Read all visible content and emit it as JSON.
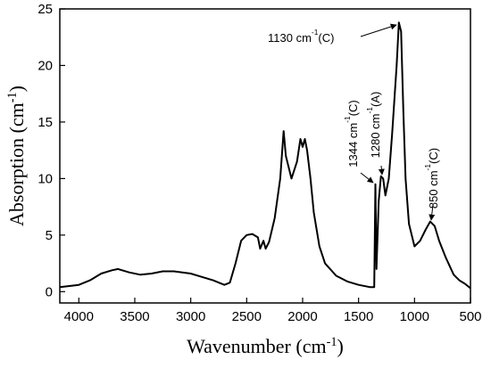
{
  "chart_data": {
    "type": "line",
    "xlabel": {
      "text": "Wavenumber (cm",
      "sup": "-1",
      "suffix": ")"
    },
    "ylabel": {
      "text": "Absorption (cm",
      "sup": "-1",
      "suffix": ")"
    },
    "xlim": [
      4170,
      500
    ],
    "ylim": [
      -1,
      25
    ],
    "xticks": [
      4000,
      3500,
      3000,
      2500,
      2000,
      1500,
      1000,
      500
    ],
    "yticks": [
      0,
      5,
      10,
      15,
      20,
      25
    ],
    "annotations": [
      {
        "text": "1130 cm",
        "sup": "-1",
        "suffix": "(C)"
      },
      {
        "text": "1344 cm",
        "sup": "-1",
        "suffix": "(C)"
      },
      {
        "text": "1280 cm",
        "sup": "-1",
        "suffix": "(A)"
      },
      {
        "text": "850 cm",
        "sup": "-1",
        "suffix": "(C)"
      }
    ],
    "x": [
      4170,
      4000,
      3900,
      3800,
      3700,
      3650,
      3550,
      3450,
      3350,
      3250,
      3150,
      3000,
      2900,
      2800,
      2700,
      2650,
      2600,
      2550,
      2500,
      2450,
      2400,
      2380,
      2350,
      2330,
      2300,
      2250,
      2200,
      2170,
      2150,
      2100,
      2050,
      2020,
      2000,
      1980,
      1960,
      1930,
      1900,
      1850,
      1800,
      1700,
      1600,
      1500,
      1400,
      1360,
      1350,
      1340,
      1320,
      1300,
      1280,
      1260,
      1230,
      1200,
      1160,
      1140,
      1120,
      1100,
      1080,
      1050,
      1000,
      950,
      900,
      860,
      820,
      780,
      720,
      650,
      600,
      550,
      500
    ],
    "series": [
      {
        "color": "#000000",
        "values": [
          0.4,
          0.6,
          1.0,
          1.6,
          1.9,
          2.0,
          1.7,
          1.5,
          1.6,
          1.8,
          1.8,
          1.6,
          1.3,
          1.0,
          0.6,
          0.8,
          2.5,
          4.5,
          5.0,
          5.1,
          4.8,
          3.8,
          4.5,
          3.8,
          4.4,
          6.5,
          10,
          14.2,
          12,
          10,
          11.5,
          13.5,
          12.8,
          13.5,
          12.5,
          10,
          7,
          4,
          2.5,
          1.4,
          0.9,
          0.6,
          0.4,
          0.4,
          9.5,
          2,
          8,
          10.2,
          10.0,
          8.5,
          10,
          14,
          20,
          23.8,
          23,
          16,
          10,
          6,
          4.0,
          4.5,
          5.5,
          6.2,
          5.8,
          4.5,
          3.0,
          1.5,
          1.0,
          0.7,
          0.3
        ]
      }
    ]
  }
}
